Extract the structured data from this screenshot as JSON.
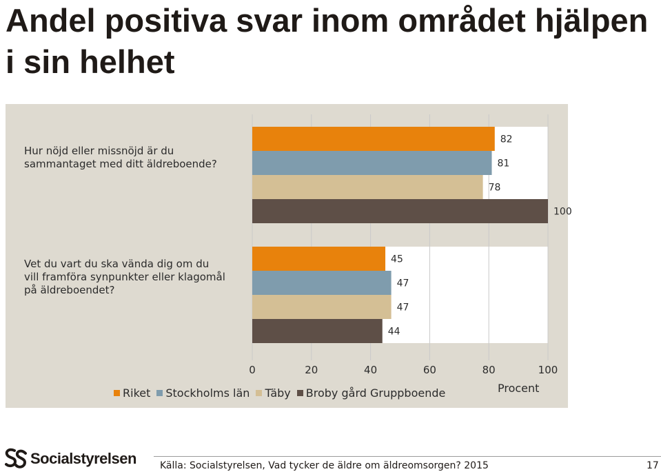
{
  "page": {
    "title": "Andel positiva svar inom området hjälpen i sin helhet",
    "source": "Källa: Socialstyrelsen, Vad tycker de äldre om äldreomsorgen? 2015",
    "page_number": "17",
    "logo_text": "Socialstyrelsen"
  },
  "colors": {
    "panel_bg": "#dedad0",
    "plot_bg": "#ffffff",
    "Riket": "#e8820c",
    "Stockholms län": "#7f9cad",
    "Täby": "#d4bf95",
    "Broby gård Gruppboende": "#5e4f47"
  },
  "chart_data": {
    "type": "bar",
    "orientation": "horizontal",
    "xlabel": "Procent",
    "xlim": [
      0,
      100
    ],
    "xticks": [
      0,
      20,
      40,
      60,
      80,
      100
    ],
    "grid": true,
    "legend_position": "bottom",
    "groups": [
      {
        "label": "Hur nöjd eller missnöjd är du\nsammantaget med ditt äldreboende?",
        "values": [
          82,
          81,
          78,
          100
        ]
      },
      {
        "label": "Vet du vart du ska vända dig om du\nvill framföra synpunkter eller klagomål\npå äldreboendet?",
        "values": [
          45,
          47,
          47,
          44
        ]
      }
    ],
    "series": [
      {
        "name": "Riket"
      },
      {
        "name": "Stockholms län"
      },
      {
        "name": "Täby"
      },
      {
        "name": "Broby gård Gruppboende"
      }
    ]
  }
}
